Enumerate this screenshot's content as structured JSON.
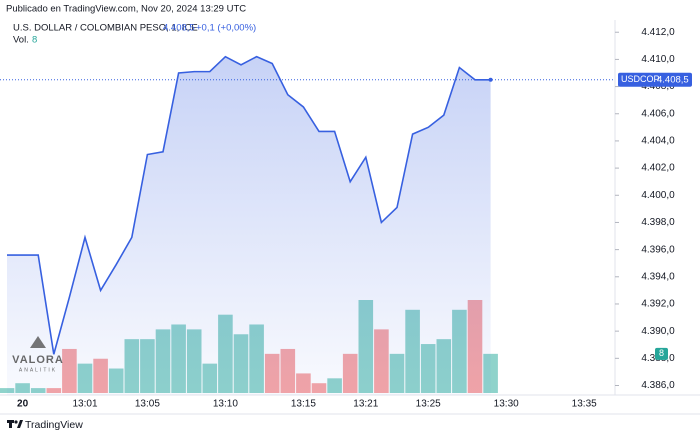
{
  "header": {
    "published": "Publicado en TradingView.com, Nov 20, 2024 13:29 UTC",
    "symbol": "U.S. DOLLAR / COLOMBIAN PESO, 1, ICE",
    "change": "+0,1 (+0,00%)"
  },
  "footer": "TradingView",
  "watermark": {
    "title": "VALORA",
    "subtitle": "ANALITIK"
  },
  "chart_data": {
    "type": "line",
    "categories": [
      null,
      "20",
      null,
      null,
      null,
      "13:01",
      null,
      null,
      null,
      "13:05",
      null,
      null,
      null,
      null,
      "13:10",
      null,
      null,
      null,
      null,
      "13:15",
      null,
      null,
      null,
      "13:21",
      null,
      null,
      null,
      "13:25",
      null,
      null,
      null,
      null,
      "13:30",
      null,
      null,
      null,
      null,
      "13:35"
    ],
    "series": [
      {
        "name": "USDCOP",
        "color": "#3760e0",
        "values": [
          4395.6,
          4395.6,
          4395.6,
          4388.3,
          4392.5,
          4396.9,
          4393.0,
          4394.9,
          4396.9,
          4403.0,
          4403.2,
          4409.0,
          4409.1,
          4409.1,
          4410.2,
          4409.6,
          4410.2,
          4409.7,
          4407.4,
          4406.5,
          4404.7,
          4404.7,
          4401.0,
          4402.8,
          4398.0,
          4399.1,
          4404.5,
          4405.0,
          4405.9,
          4409.4,
          4408.5,
          4408.5,
          null,
          null,
          null,
          null,
          null,
          null
        ]
      }
    ],
    "last_price": {
      "value": 4408.5,
      "label": "4.408,5"
    },
    "volume": {
      "name": "Vol.",
      "values": [
        1,
        2,
        1,
        1,
        9,
        6,
        7,
        5,
        11,
        11,
        13,
        14,
        13,
        6,
        16,
        12,
        14,
        8,
        9,
        4,
        2,
        3,
        8,
        19,
        13,
        8,
        17,
        10,
        11,
        17,
        19,
        8,
        null,
        null,
        null,
        null,
        null,
        null
      ],
      "colors": [
        "#8fd3cb",
        "#8fd3cb",
        "#8fd3cb",
        "#f5a5a6",
        "#f5a5a6",
        "#8fd3cb",
        "#f5a5a6",
        "#8fd3cb",
        "#8fd3cb",
        "#8fd3cb",
        "#8fd3cb",
        "#8fd3cb",
        "#8fd3cb",
        "#8fd3cb",
        "#8fd3cb",
        "#8fd3cb",
        "#8fd3cb",
        "#f5a5a6",
        "#f5a5a6",
        "#f5a5a6",
        "#f5a5a6",
        "#8fd3cb",
        "#f5a5a6",
        "#8fd3cb",
        "#f5a5a6",
        "#8fd3cb",
        "#8fd3cb",
        "#8fd3cb",
        "#8fd3cb",
        "#8fd3cb",
        "#f5a5a6",
        "#8fd3cb",
        null,
        null,
        null,
        null,
        null,
        null
      ],
      "label_color": "#26a69a"
    },
    "ylim": [
      4385.3,
      4412.9
    ],
    "yticks": [
      {
        "value": 4412.0,
        "label": "4.412,0"
      },
      {
        "value": 4410.0,
        "label": "4.410,0"
      },
      {
        "value": 4408.0,
        "label": "4.408,0"
      },
      {
        "value": 4406.0,
        "label": "4.406,0"
      },
      {
        "value": 4404.0,
        "label": "4.404,0"
      },
      {
        "value": 4402.0,
        "label": "4.402,0"
      },
      {
        "value": 4400.0,
        "label": "4.400,0"
      },
      {
        "value": 4398.0,
        "label": "4.398,0"
      },
      {
        "value": 4396.0,
        "label": "4.396,0"
      },
      {
        "value": 4394.0,
        "label": "4.394,0"
      },
      {
        "value": 4392.0,
        "label": "4.392,0"
      },
      {
        "value": 4390.0,
        "label": "4.390,0"
      },
      {
        "value": 4388.0,
        "label": "4.388,0"
      },
      {
        "value": 4386.0,
        "label": "4.386,0"
      }
    ],
    "grid": false
  }
}
